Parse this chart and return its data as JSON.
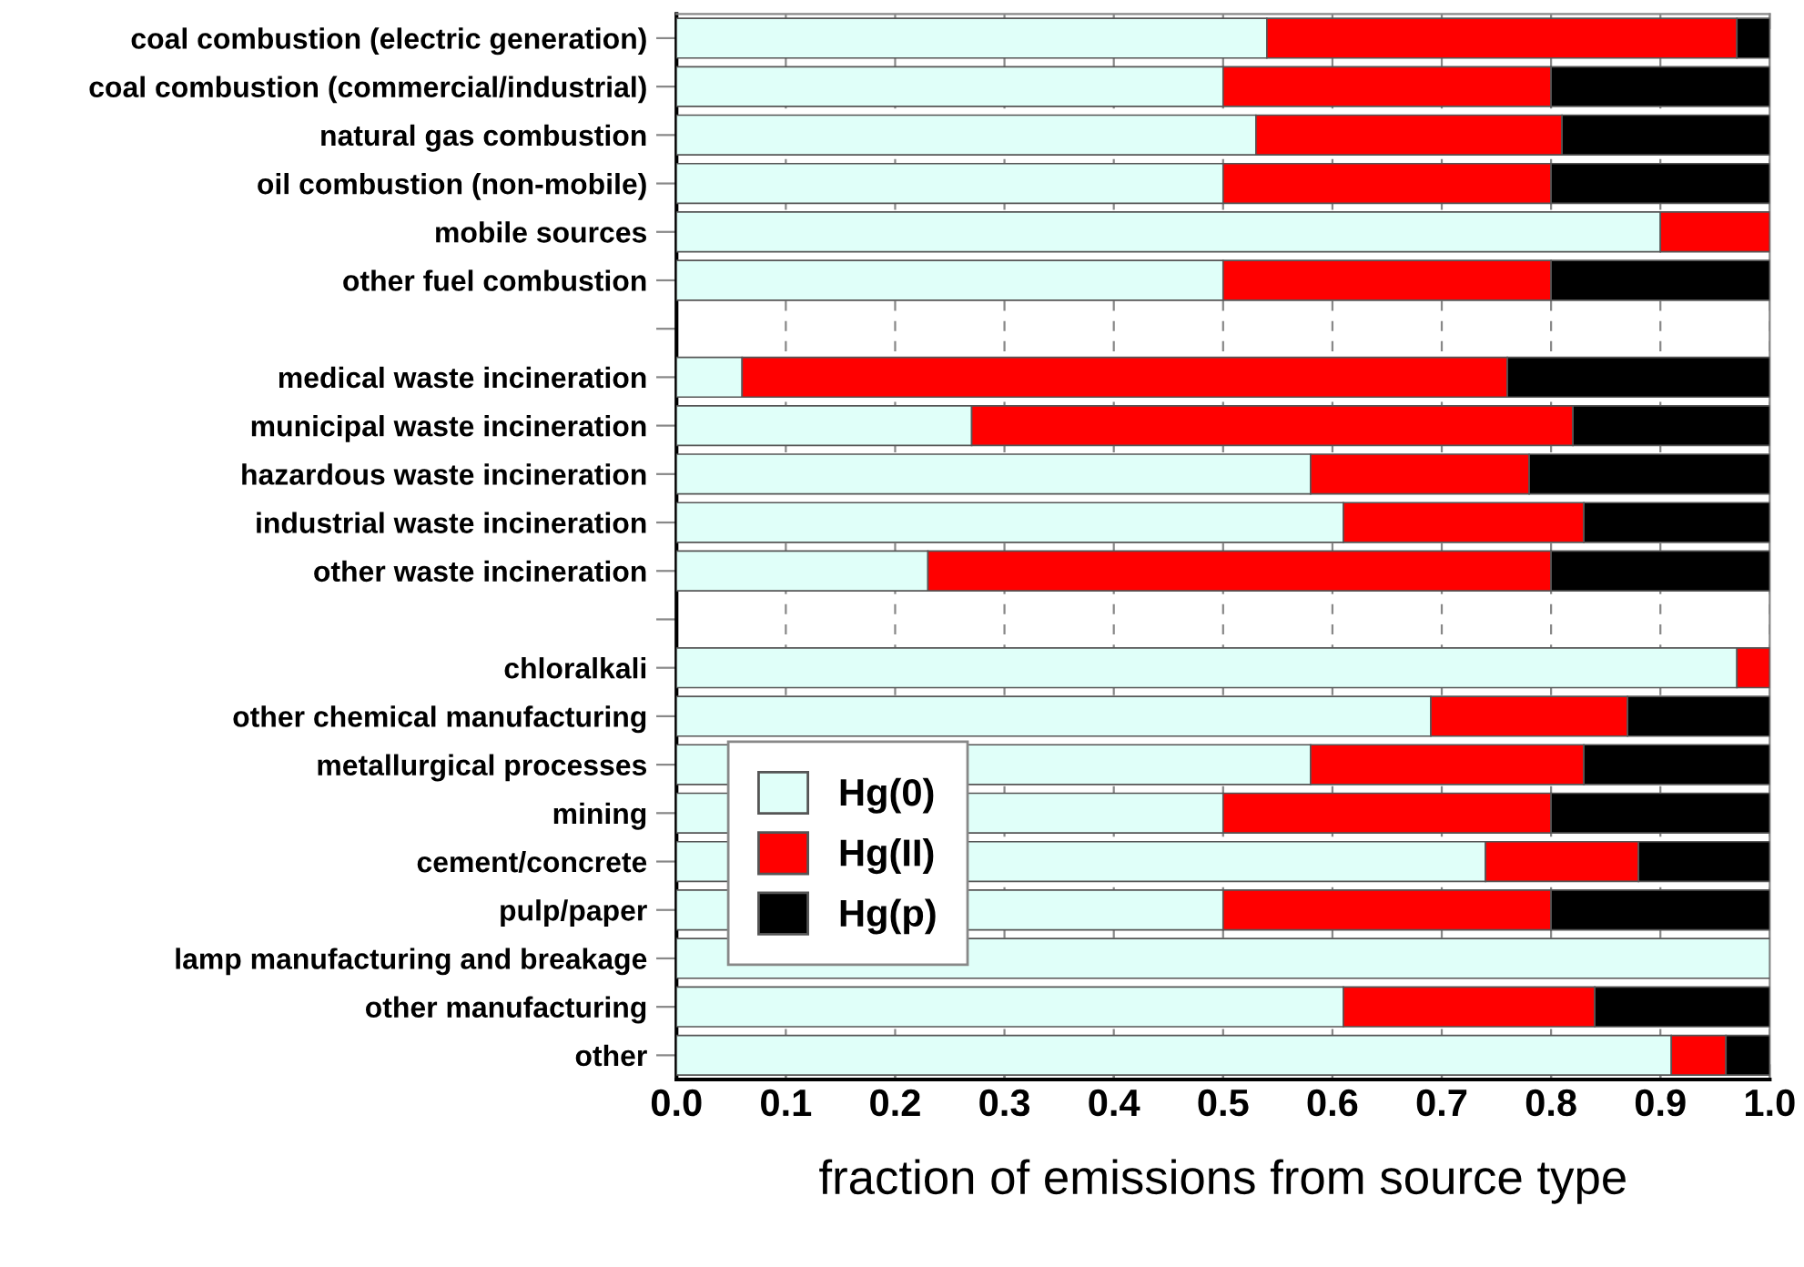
{
  "chart_data": {
    "type": "bar",
    "orientation": "horizontal",
    "stacked": true,
    "xlabel": "fraction of emissions from source type",
    "categories": [
      "coal combustion (electric generation)",
      "coal combustion (commercial/industrial)",
      "natural gas combustion",
      "oil combustion (non-mobile)",
      "mobile sources",
      "other fuel combustion",
      null,
      "medical waste incineration",
      "municipal waste incineration",
      "hazardous waste incineration",
      "industrial waste incineration",
      "other waste incineration",
      null,
      "chloralkali",
      "other chemical manufacturing",
      "metallurgical processes",
      "mining",
      "cement/concrete",
      "pulp/paper",
      "lamp manufacturing and breakage",
      "other manufacturing",
      "other"
    ],
    "series": [
      {
        "name": "Hg(0)",
        "color": "#e0fff9",
        "values": [
          0.54,
          0.5,
          0.53,
          0.5,
          0.9,
          0.5,
          null,
          0.06,
          0.27,
          0.58,
          0.61,
          0.23,
          null,
          0.97,
          0.69,
          0.58,
          0.5,
          0.74,
          0.5,
          1.0,
          0.61,
          0.91
        ]
      },
      {
        "name": "Hg(II)",
        "color": "#ff0000",
        "values": [
          0.43,
          0.3,
          0.28,
          0.3,
          0.1,
          0.3,
          null,
          0.7,
          0.55,
          0.2,
          0.22,
          0.57,
          null,
          0.03,
          0.18,
          0.25,
          0.3,
          0.14,
          0.3,
          null,
          0.23,
          0.05
        ]
      },
      {
        "name": "Hg(p)",
        "color": "#000000",
        "values": [
          0.03,
          0.2,
          0.19,
          0.2,
          null,
          0.2,
          null,
          0.24,
          0.18,
          0.22,
          0.17,
          0.2,
          null,
          null,
          0.13,
          0.17,
          0.2,
          0.12,
          0.2,
          null,
          0.16,
          0.04
        ]
      }
    ],
    "xlim": [
      0.0,
      1.0
    ],
    "xticks": [
      {
        "value": 0.0,
        "label": "0.0"
      },
      0.1,
      0.2,
      0.3,
      0.4,
      0.5,
      0.6,
      0.7,
      0.8,
      0.9,
      {
        "value": 1.0,
        "label": "1.0"
      }
    ],
    "grid": "x",
    "legend": "bottom left"
  }
}
